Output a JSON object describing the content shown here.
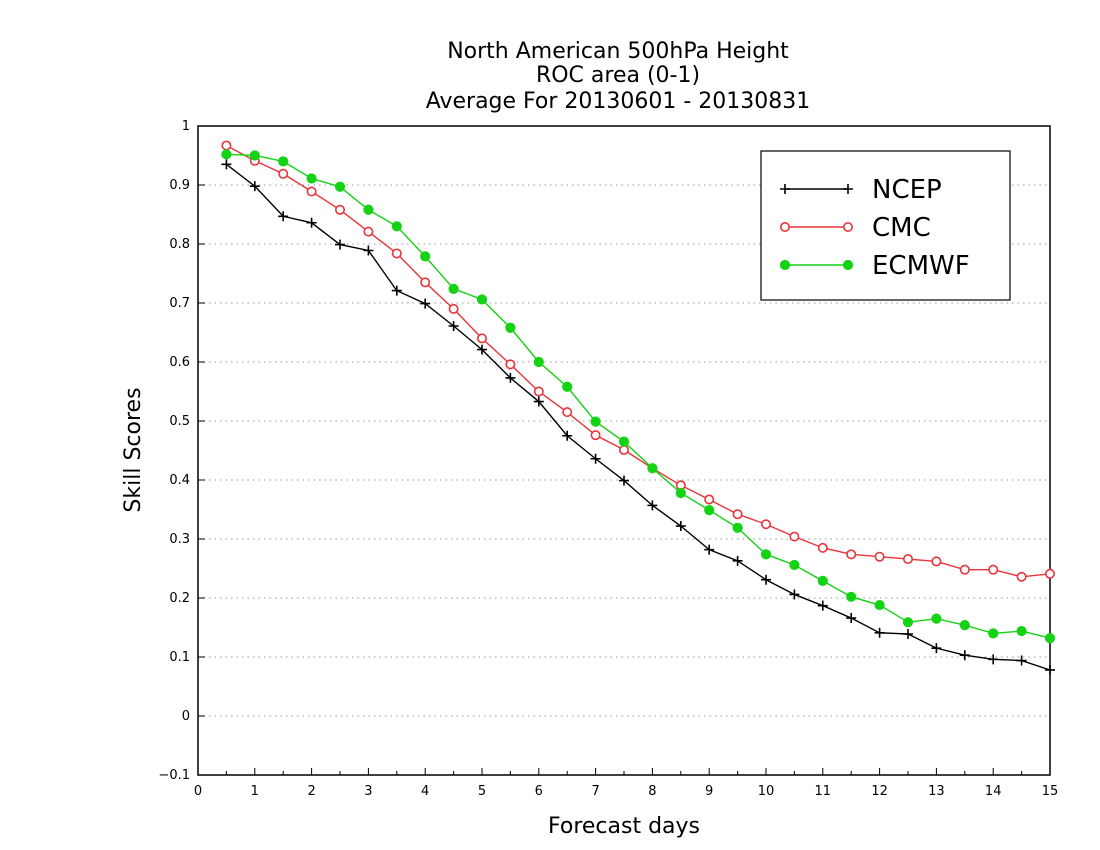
{
  "chart_data": {
    "type": "line",
    "title": "North American 500hPa Height",
    "subtitle": "ROC area (0-1)",
    "period": "Average For 20130601 - 20130831",
    "xlabel": "Forecast days",
    "ylabel": "Skill Scores",
    "xlim": [
      0,
      15
    ],
    "ylim": [
      -0.1,
      1
    ],
    "x_ticks": [
      "0",
      "1",
      "2",
      "3",
      "4",
      "5",
      "6",
      "7",
      "8",
      "9",
      "10",
      "11",
      "12",
      "13",
      "14",
      "15"
    ],
    "y_ticks": [
      "−0.1",
      "0",
      "0.1",
      "0.2",
      "0.3",
      "0.4",
      "0.5",
      "0.6",
      "0.7",
      "0.8",
      "0.9",
      "1"
    ],
    "grid": "horizontal dotted",
    "legend_position": "top-right",
    "x": [
      0.5,
      1,
      1.5,
      2,
      2.5,
      3,
      3.5,
      4,
      4.5,
      5,
      5.5,
      6,
      6.5,
      7,
      7.5,
      8,
      8.5,
      9,
      9.5,
      10,
      10.5,
      11,
      11.5,
      12,
      12.5,
      13,
      13.5,
      14,
      14.5,
      15
    ],
    "series": [
      {
        "name": "NCEP",
        "color": "#000000",
        "marker": "plus",
        "values": [
          0.935,
          0.898,
          0.847,
          0.836,
          0.799,
          0.789,
          0.721,
          0.699,
          0.661,
          0.621,
          0.573,
          0.533,
          0.475,
          0.436,
          0.399,
          0.357,
          0.322,
          0.282,
          0.263,
          0.231,
          0.206,
          0.187,
          0.166,
          0.141,
          0.139,
          0.115,
          0.103,
          0.096,
          0.094,
          0.078
        ]
      },
      {
        "name": "CMC",
        "color": "#e8343a",
        "marker": "open-circle",
        "values": [
          0.967,
          0.941,
          0.919,
          0.889,
          0.858,
          0.821,
          0.784,
          0.735,
          0.69,
          0.64,
          0.596,
          0.55,
          0.515,
          0.476,
          0.451,
          0.42,
          0.391,
          0.367,
          0.342,
          0.325,
          0.304,
          0.285,
          0.274,
          0.27,
          0.266,
          0.262,
          0.248,
          0.248,
          0.236,
          0.241
        ]
      },
      {
        "name": "ECMWF",
        "color": "#14d214",
        "marker": "filled-circle",
        "values": [
          0.952,
          0.95,
          0.94,
          0.911,
          0.897,
          0.858,
          0.83,
          0.779,
          0.724,
          0.706,
          0.658,
          0.6,
          0.558,
          0.499,
          0.465,
          0.42,
          0.378,
          0.349,
          0.319,
          0.274,
          0.256,
          0.229,
          0.202,
          0.188,
          0.159,
          0.165,
          0.154,
          0.14,
          0.144,
          0.132
        ]
      }
    ]
  }
}
